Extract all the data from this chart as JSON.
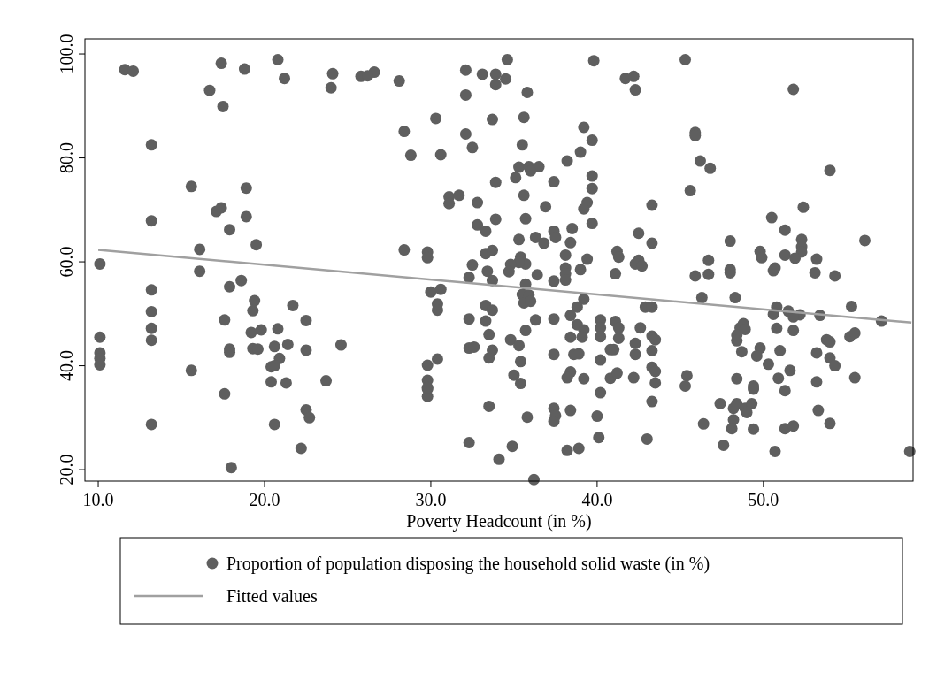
{
  "chart_data": {
    "type": "scatter",
    "xlabel": "Poverty Headcount (in %)",
    "xlim": [
      9.2,
      59.0
    ],
    "ylim": [
      17.8,
      102.9
    ],
    "xticks": [
      {
        "value": 10,
        "label": "10.0"
      },
      {
        "value": 20,
        "label": "20.0"
      },
      {
        "value": 30,
        "label": "30.0"
      },
      {
        "value": 40,
        "label": "40.0"
      },
      {
        "value": 50,
        "label": "50.0"
      }
    ],
    "yticks": [
      {
        "value": 20,
        "label": "20.0"
      },
      {
        "value": 40,
        "label": "40.0"
      },
      {
        "value": 60,
        "label": "60.0"
      },
      {
        "value": 80,
        "label": "80.0"
      },
      {
        "value": 100,
        "label": "100.0"
      }
    ],
    "grid": false,
    "legend": "bottom",
    "series": [
      {
        "name": "Proportion of population disposing the household solid waste (in %)",
        "marker": "circle",
        "color": "#5f5f5f",
        "x": [
          11.6,
          12.1,
          17.4,
          18.8,
          20.8,
          21.2,
          24.1,
          24.0,
          25.8,
          16.7,
          17.5,
          13.2,
          13.2,
          15.6,
          18.9,
          17.1,
          17.4,
          18.9,
          17.9,
          19.5,
          16.1,
          10.1,
          16.1,
          18.6,
          17.9,
          13.2,
          19.4,
          19.3,
          21.7,
          13.2,
          22.5,
          17.6,
          13.2,
          10.1,
          19.2,
          19.8,
          20.8,
          13.2,
          10.1,
          10.1,
          10.1,
          17.9,
          17.9,
          19.3,
          19.6,
          20.6,
          21.4,
          22.5,
          24.6,
          15.6,
          20.9,
          20.4,
          20.6,
          20.4,
          21.3,
          23.7,
          17.6,
          22.5,
          22.7,
          13.2,
          20.6,
          22.2,
          18.0,
          26.6,
          26.2,
          28.1,
          32.1,
          32.1,
          33.1,
          33.9,
          33.9,
          34.5,
          34.6,
          35.8,
          30.3,
          33.7,
          35.6,
          28.4,
          32.1,
          32.5,
          35.5,
          28.8,
          30.6,
          35.3,
          35.9,
          36.5,
          36.0,
          35.1,
          33.9,
          37.4,
          31.1,
          31.7,
          31.1,
          32.8,
          35.6,
          36.9,
          33.9,
          35.7,
          32.8,
          33.3,
          37.4,
          37.5,
          36.3,
          35.3,
          36.8,
          28.4,
          29.8,
          29.8,
          33.3,
          33.7,
          35.4,
          35.7,
          35.3,
          34.8,
          34.7,
          32.5,
          33.4,
          36.4,
          32.3,
          33.7,
          37.4,
          35.7,
          30.0,
          30.6,
          35.5,
          35.9,
          35.6,
          36.0,
          30.4,
          30.4,
          33.3,
          33.7,
          32.3,
          33.3,
          36.3,
          37.4,
          35.7,
          33.5,
          34.8,
          35.3,
          32.3,
          32.6,
          33.7,
          33.5,
          35.4,
          37.4,
          30.4,
          29.8,
          29.8,
          29.8,
          29.8,
          35.8,
          35.0,
          35.4,
          29.8,
          33.5,
          37.4,
          37.5,
          37.4,
          32.3,
          34.9,
          34.1,
          36.2,
          39.8,
          41.7,
          42.2,
          42.3,
          45.3,
          39.2,
          39.7,
          39.0,
          38.2,
          39.7,
          39.7,
          39.4,
          39.2,
          39.7,
          38.5,
          38.4,
          38.1,
          38.1,
          38.1,
          38.1,
          39.0,
          39.4,
          41.2,
          41.3,
          41.1,
          42.5,
          43.3,
          43.3,
          42.5,
          42.3,
          42.7,
          45.9,
          45.9,
          46.2,
          46.8,
          45.6,
          48.0,
          46.7,
          46.7,
          45.9,
          48.0,
          48.0,
          46.3,
          48.3,
          39.2,
          38.8,
          38.4,
          38.8,
          39.2,
          39.1,
          38.4,
          38.6,
          38.9,
          40.2,
          40.2,
          40.2,
          41.1,
          41.3,
          41.3,
          42.6,
          41.0,
          40.8,
          42.3,
          42.3,
          43.3,
          43.5,
          43.3,
          42.9,
          43.3,
          40.2,
          38.4,
          38.2,
          39.2,
          40.8,
          41.2,
          42.2,
          43.3,
          43.5,
          43.5,
          45.4,
          45.3,
          48.4,
          48.6,
          40.2,
          43.3,
          38.4,
          40.0,
          40.1,
          38.2,
          38.9,
          43.0,
          47.4,
          48.2,
          48.2,
          48.1,
          46.4,
          47.6,
          51.8,
          54.0,
          52.4,
          50.5,
          51.3,
          52.3,
          52.3,
          52.3,
          56.1,
          49.8,
          49.9,
          51.3,
          51.9,
          53.2,
          53.1,
          54.3,
          50.6,
          50.7,
          50.8,
          50.6,
          51.5,
          52.2,
          51.8,
          53.4,
          55.3,
          57.1,
          50.8,
          51.8,
          48.8,
          48.9,
          48.4,
          48.4,
          55.2,
          55.5,
          53.8,
          54.0,
          48.7,
          49.8,
          49.6,
          51.0,
          53.2,
          50.3,
          54.0,
          54.3,
          51.6,
          50.9,
          51.3,
          49.4,
          49.4,
          53.2,
          55.5,
          48.4,
          48.9,
          49.0,
          49.3,
          53.3,
          49.4,
          51.3,
          51.8,
          54.0,
          50.7,
          58.8
        ],
        "values": [
          97.0,
          96.7,
          98.2,
          97.1,
          98.9,
          95.3,
          96.2,
          93.5,
          95.7,
          93.0,
          89.9,
          82.5,
          67.9,
          74.5,
          74.2,
          69.7,
          70.4,
          68.7,
          66.2,
          63.3,
          62.4,
          59.6,
          58.2,
          56.4,
          55.2,
          54.6,
          52.5,
          50.6,
          51.6,
          50.4,
          48.7,
          48.8,
          47.2,
          45.5,
          46.4,
          46.9,
          47.1,
          44.9,
          42.5,
          41.4,
          40.2,
          43.2,
          42.6,
          43.3,
          43.2,
          43.7,
          44.1,
          43.0,
          44.0,
          39.1,
          41.4,
          39.8,
          40.0,
          36.9,
          36.7,
          37.1,
          34.6,
          31.5,
          30.0,
          28.7,
          28.7,
          24.1,
          20.4,
          96.5,
          95.8,
          94.8,
          96.9,
          92.1,
          96.1,
          96.1,
          94.1,
          95.2,
          98.9,
          92.6,
          87.6,
          87.4,
          87.8,
          85.1,
          84.6,
          82.0,
          82.5,
          80.5,
          80.6,
          78.2,
          78.3,
          78.3,
          77.5,
          76.2,
          75.3,
          75.4,
          72.5,
          72.8,
          71.2,
          71.4,
          72.8,
          70.6,
          68.2,
          68.3,
          67.1,
          65.9,
          65.9,
          64.7,
          64.7,
          64.3,
          63.6,
          62.3,
          61.9,
          60.8,
          61.6,
          62.2,
          60.9,
          59.6,
          59.9,
          59.5,
          58.1,
          59.4,
          58.2,
          57.5,
          57.0,
          56.4,
          56.3,
          55.7,
          54.2,
          54.7,
          53.7,
          53.6,
          52.1,
          52.4,
          51.9,
          50.7,
          51.6,
          50.7,
          49.0,
          48.6,
          48.8,
          49.0,
          46.8,
          46.0,
          45.0,
          43.9,
          43.4,
          43.6,
          43.0,
          41.5,
          40.8,
          42.2,
          41.3,
          40.1,
          37.2,
          35.5,
          34.1,
          30.1,
          38.2,
          36.6,
          35.8,
          32.2,
          31.8,
          30.4,
          29.3,
          25.2,
          24.5,
          22.0,
          18.1,
          98.7,
          95.3,
          95.7,
          93.1,
          98.9,
          85.9,
          83.4,
          81.1,
          79.4,
          76.5,
          74.1,
          71.4,
          70.2,
          67.4,
          66.4,
          63.7,
          61.3,
          58.8,
          57.7,
          56.5,
          58.5,
          60.5,
          62.0,
          60.9,
          57.7,
          65.5,
          70.9,
          63.6,
          60.3,
          59.6,
          59.2,
          84.9,
          84.3,
          79.4,
          78.0,
          73.7,
          64.0,
          60.3,
          57.6,
          57.3,
          58.5,
          57.9,
          53.1,
          53.1,
          52.8,
          51.3,
          49.7,
          47.9,
          46.9,
          45.5,
          45.5,
          42.2,
          42.3,
          48.8,
          47.3,
          45.6,
          48.5,
          47.3,
          45.3,
          47.3,
          43.1,
          43.1,
          44.3,
          42.2,
          45.7,
          45.0,
          42.9,
          51.3,
          51.3,
          41.1,
          38.8,
          37.7,
          37.5,
          37.6,
          38.6,
          37.7,
          39.7,
          38.9,
          36.7,
          38.1,
          36.1,
          37.5,
          47.3,
          34.8,
          33.1,
          31.4,
          30.3,
          26.2,
          23.7,
          24.1,
          25.9,
          32.7,
          31.8,
          29.6,
          27.9,
          28.8,
          24.7,
          93.2,
          77.6,
          70.5,
          68.5,
          66.1,
          64.3,
          62.9,
          61.9,
          64.1,
          62.0,
          60.8,
          61.3,
          60.7,
          60.5,
          57.9,
          57.3,
          58.3,
          58.8,
          51.3,
          49.9,
          50.5,
          49.8,
          49.4,
          49.7,
          51.4,
          48.6,
          47.2,
          46.8,
          48.1,
          47.0,
          45.9,
          44.8,
          45.6,
          46.3,
          45.0,
          44.6,
          42.7,
          43.4,
          41.9,
          42.9,
          42.5,
          40.3,
          41.5,
          40.0,
          39.1,
          37.6,
          35.2,
          36.1,
          35.5,
          36.9,
          37.7,
          32.7,
          31.8,
          31.0,
          32.7,
          31.4,
          27.8,
          27.9,
          28.4,
          28.9,
          23.5,
          23.5
        ]
      },
      {
        "name": "Fitted values",
        "type": "line",
        "color": "#a0a0a0",
        "x": [
          10.0,
          58.9
        ],
        "values": [
          62.3,
          48.3
        ]
      }
    ]
  }
}
